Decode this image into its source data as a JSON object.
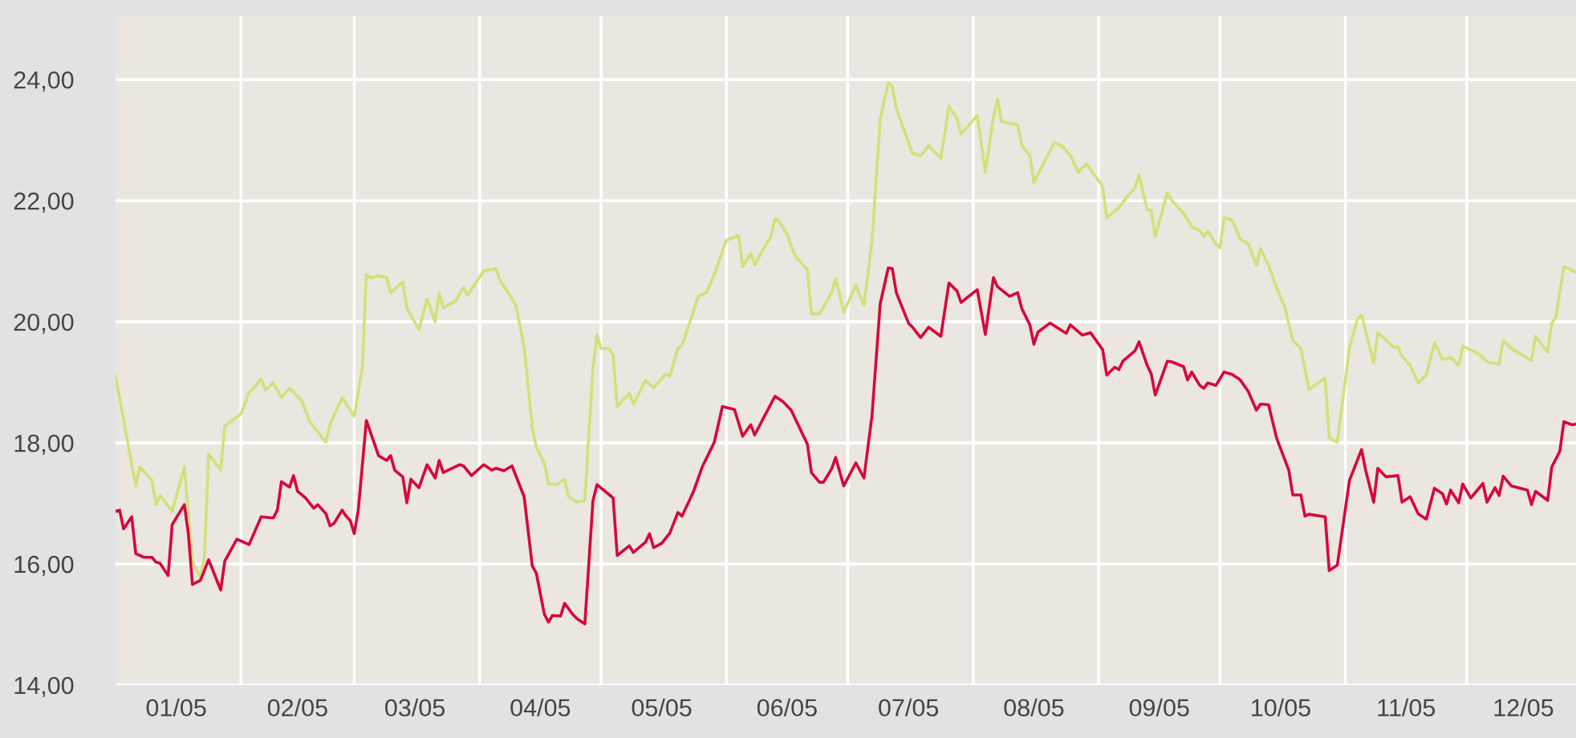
{
  "chart_data": {
    "type": "line",
    "series": [
      {
        "color": "#cfe27a",
        "x": [
          "2005-01-01",
          "2005-01-06",
          "2005-01-07",
          "2005-01-10",
          "2005-01-11",
          "2005-01-12",
          "2005-01-15",
          "2005-01-18",
          "2005-01-20",
          "2005-01-22",
          "2005-01-23",
          "2005-01-24",
          "2005-01-27",
          "2005-01-28",
          "2005-02-01",
          "2005-02-03",
          "2005-02-06",
          "2005-02-07",
          "2005-02-09",
          "2005-02-11",
          "2005-02-13",
          "2005-02-16",
          "2005-02-18",
          "2005-02-22",
          "2005-02-23",
          "2005-02-26",
          "2005-02-28",
          "2005-03-01",
          "2005-03-03",
          "2005-03-04",
          "2005-03-05",
          "2005-03-07",
          "2005-03-09",
          "2005-03-10",
          "2005-03-13",
          "2005-03-14",
          "2005-03-17",
          "2005-03-19",
          "2005-03-21",
          "2005-03-22",
          "2005-03-23",
          "2005-03-26",
          "2005-03-28",
          "2005-03-29",
          "2005-04-02",
          "2005-04-05",
          "2005-04-06",
          "2005-04-10",
          "2005-04-12",
          "2005-04-14",
          "2005-04-15",
          "2005-04-17",
          "2005-04-18",
          "2005-04-20",
          "2005-04-22",
          "2005-04-23",
          "2005-04-25",
          "2005-04-27",
          "2005-04-29",
          "2005-04-30",
          "2005-05-01",
          "2005-05-03",
          "2005-05-04",
          "2005-05-05",
          "2005-05-08",
          "2005-05-09",
          "2005-05-12",
          "2005-05-14",
          "2005-05-17",
          "2005-05-18",
          "2005-05-20",
          "2005-05-21",
          "2005-05-23",
          "2005-05-25",
          "2005-05-27",
          "2005-05-29",
          "2005-06-01",
          "2005-06-04",
          "2005-06-05",
          "2005-06-07",
          "2005-06-08",
          "2005-06-10",
          "2005-06-12",
          "2005-06-13",
          "2005-06-14",
          "2005-06-16",
          "2005-06-18",
          "2005-06-21",
          "2005-06-22",
          "2005-06-24",
          "2005-06-27",
          "2005-06-28",
          "2005-06-30",
          "2005-07-03",
          "2005-07-05",
          "2005-07-07",
          "2005-07-09",
          "2005-07-11",
          "2005-07-12",
          "2005-07-13",
          "2005-07-17",
          "2005-07-19",
          "2005-07-21",
          "2005-07-24",
          "2005-07-26",
          "2005-07-28",
          "2005-07-29",
          "2005-08-02",
          "2005-08-04",
          "2005-08-06",
          "2005-08-07",
          "2005-08-08",
          "2005-08-12",
          "2005-08-13",
          "2005-08-15",
          "2005-08-16",
          "2005-08-17",
          "2005-08-21",
          "2005-08-23",
          "2005-08-25",
          "2005-08-27",
          "2005-08-29",
          "2005-08-30",
          "2005-09-02",
          "2005-09-03",
          "2005-09-06",
          "2005-09-08",
          "2005-09-10",
          "2005-09-11",
          "2005-09-13",
          "2005-09-14",
          "2005-09-15",
          "2005-09-18",
          "2005-09-19",
          "2005-09-22",
          "2005-09-24",
          "2005-09-26",
          "2005-09-27",
          "2005-09-28",
          "2005-09-30",
          "2005-10-01",
          "2005-10-02",
          "2005-10-04",
          "2005-10-06",
          "2005-10-08",
          "2005-10-10",
          "2005-10-11",
          "2005-10-13",
          "2005-10-15",
          "2005-10-17",
          "2005-10-19",
          "2005-10-21",
          "2005-10-23",
          "2005-10-27",
          "2005-10-28",
          "2005-10-30",
          "2005-11-02",
          "2005-11-04",
          "2005-11-05",
          "2005-11-08",
          "2005-11-09",
          "2005-11-13",
          "2005-11-14",
          "2005-11-15",
          "2005-11-17",
          "2005-11-19",
          "2005-11-21",
          "2005-11-23",
          "2005-11-25",
          "2005-11-27",
          "2005-11-29",
          "2005-11-30",
          "2005-12-04",
          "2005-12-06",
          "2005-12-09",
          "2005-12-10",
          "2005-12-12",
          "2005-12-17",
          "2005-12-18",
          "2005-12-21",
          "2005-12-22",
          "2005-12-23",
          "2005-12-25",
          "2005-12-28"
        ],
        "values": [
          19.1,
          17.29,
          17.6,
          17.38,
          16.98,
          17.13,
          16.87,
          17.6,
          16.05,
          15.76,
          16.14,
          17.82,
          17.55,
          18.28,
          18.48,
          18.83,
          19.05,
          18.87,
          18.99,
          18.75,
          18.9,
          18.7,
          18.35,
          18.01,
          18.3,
          18.75,
          18.54,
          18.44,
          19.23,
          20.78,
          20.72,
          20.76,
          20.73,
          20.48,
          20.66,
          20.23,
          19.87,
          20.38,
          20.0,
          20.48,
          20.23,
          20.34,
          20.57,
          20.44,
          20.84,
          20.88,
          20.69,
          20.27,
          19.58,
          18.26,
          17.93,
          17.66,
          17.33,
          17.31,
          17.4,
          17.11,
          17.02,
          17.05,
          19.23,
          19.78,
          19.56,
          19.56,
          19.45,
          18.6,
          18.82,
          18.64,
          19.03,
          18.91,
          19.14,
          19.1,
          19.56,
          19.61,
          20.0,
          20.42,
          20.48,
          20.78,
          21.35,
          21.42,
          20.91,
          21.13,
          20.94,
          21.19,
          21.41,
          21.7,
          21.66,
          21.44,
          21.09,
          20.86,
          20.13,
          20.13,
          20.48,
          20.72,
          20.16,
          20.6,
          20.27,
          21.35,
          23.34,
          23.95,
          23.89,
          23.52,
          22.78,
          22.74,
          22.91,
          22.7,
          23.56,
          23.36,
          23.1,
          23.41,
          22.47,
          23.38,
          23.68,
          23.31,
          23.25,
          22.91,
          22.75,
          22.3,
          22.43,
          22.96,
          22.9,
          22.75,
          22.47,
          22.61,
          22.52,
          22.23,
          21.72,
          21.88,
          22.06,
          22.21,
          22.43,
          21.85,
          21.84,
          21.41,
          22.13,
          22.01,
          21.79,
          21.57,
          21.51,
          21.41,
          21.5,
          21.28,
          21.22,
          21.72,
          21.68,
          21.37,
          21.29,
          20.93,
          21.21,
          20.93,
          20.56,
          20.25,
          19.69,
          19.56,
          18.88,
          19.07,
          18.08,
          18.01,
          19.57,
          20.05,
          20.11,
          19.32,
          19.82,
          19.58,
          19.58,
          19.43,
          19.28,
          18.99,
          19.12,
          19.65,
          19.38,
          19.41,
          19.28,
          19.6,
          19.47,
          19.34,
          19.3,
          19.69,
          19.56,
          19.36,
          19.76,
          19.5,
          19.98,
          20.07,
          20.91,
          20.82
        ]
      },
      {
        "color": "#d6083b",
        "x": [
          "2005-01-01",
          "2005-01-02",
          "2005-01-03",
          "2005-01-05",
          "2005-01-06",
          "2005-01-08",
          "2005-01-10",
          "2005-01-11",
          "2005-01-12",
          "2005-01-14",
          "2005-01-15",
          "2005-01-18",
          "2005-01-19",
          "2005-01-20",
          "2005-01-22",
          "2005-01-24",
          "2005-01-27",
          "2005-01-28",
          "2005-01-31",
          "2005-02-03",
          "2005-02-06",
          "2005-02-09",
          "2005-02-10",
          "2005-02-11",
          "2005-02-13",
          "2005-02-14",
          "2005-02-15",
          "2005-02-17",
          "2005-02-19",
          "2005-02-20",
          "2005-02-22",
          "2005-02-23",
          "2005-02-24",
          "2005-02-26",
          "2005-02-27",
          "2005-02-28",
          "2005-03-01",
          "2005-03-02",
          "2005-03-04",
          "2005-03-07",
          "2005-03-09",
          "2005-03-10",
          "2005-03-11",
          "2005-03-13",
          "2005-03-14",
          "2005-03-15",
          "2005-03-17",
          "2005-03-19",
          "2005-03-21",
          "2005-03-22",
          "2005-03-23",
          "2005-03-27",
          "2005-03-28",
          "2005-03-30",
          "2005-04-02",
          "2005-04-04",
          "2005-04-05",
          "2005-04-07",
          "2005-04-09",
          "2005-04-12",
          "2005-04-14",
          "2005-04-15",
          "2005-04-17",
          "2005-04-18",
          "2005-04-19",
          "2005-04-21",
          "2005-04-22",
          "2005-04-24",
          "2005-04-25",
          "2005-04-27",
          "2005-04-29",
          "2005-04-30",
          "2005-05-04",
          "2005-05-05",
          "2005-05-08",
          "2005-05-09",
          "2005-05-12",
          "2005-05-13",
          "2005-05-14",
          "2005-05-16",
          "2005-05-18",
          "2005-05-20",
          "2005-05-21",
          "2005-05-23",
          "2005-05-24",
          "2005-05-26",
          "2005-05-29",
          "2005-05-31",
          "2005-06-03",
          "2005-06-05",
          "2005-06-07",
          "2005-06-08",
          "2005-06-10",
          "2005-06-13",
          "2005-06-15",
          "2005-06-17",
          "2005-06-21",
          "2005-06-22",
          "2005-06-24",
          "2005-06-25",
          "2005-06-27",
          "2005-06-28",
          "2005-06-30",
          "2005-07-03",
          "2005-07-05",
          "2005-07-07",
          "2005-07-09",
          "2005-07-11",
          "2005-07-12",
          "2005-07-13",
          "2005-07-16",
          "2005-07-17",
          "2005-07-19",
          "2005-07-21",
          "2005-07-24",
          "2005-07-26",
          "2005-07-28",
          "2005-07-29",
          "2005-08-02",
          "2005-08-04",
          "2005-08-06",
          "2005-08-07",
          "2005-08-10",
          "2005-08-12",
          "2005-08-13",
          "2005-08-15",
          "2005-08-16",
          "2005-08-17",
          "2005-08-20",
          "2005-08-24",
          "2005-08-25",
          "2005-08-28",
          "2005-08-30",
          "2005-09-02",
          "2005-09-03",
          "2005-09-05",
          "2005-09-06",
          "2005-09-07",
          "2005-09-10",
          "2005-09-11",
          "2005-09-13",
          "2005-09-14",
          "2005-09-15",
          "2005-09-18",
          "2005-09-19",
          "2005-09-22",
          "2005-09-23",
          "2005-09-24",
          "2005-09-26",
          "2005-09-27",
          "2005-09-28",
          "2005-09-30",
          "2005-10-02",
          "2005-10-04",
          "2005-10-06",
          "2005-10-08",
          "2005-10-10",
          "2005-10-11",
          "2005-10-13",
          "2005-10-15",
          "2005-10-18",
          "2005-10-19",
          "2005-10-21",
          "2005-10-22",
          "2005-10-23",
          "2005-10-27",
          "2005-10-28",
          "2005-10-30",
          "2005-11-02",
          "2005-11-05",
          "2005-11-06",
          "2005-11-08",
          "2005-11-09",
          "2005-11-11",
          "2005-11-14",
          "2005-11-15",
          "2005-11-17",
          "2005-11-19",
          "2005-11-21",
          "2005-11-23",
          "2005-11-25",
          "2005-11-26",
          "2005-11-27",
          "2005-11-29",
          "2005-11-30",
          "2005-12-02",
          "2005-12-05",
          "2005-12-06",
          "2005-12-08",
          "2005-12-09",
          "2005-12-10",
          "2005-12-12",
          "2005-12-16",
          "2005-12-17",
          "2005-12-18",
          "2005-12-21",
          "2005-12-22",
          "2005-12-24",
          "2005-12-25",
          "2005-12-27",
          "2005-12-28"
        ],
        "values": [
          16.87,
          16.89,
          16.58,
          16.78,
          16.17,
          16.11,
          16.11,
          16.03,
          16.01,
          15.81,
          16.65,
          16.98,
          16.5,
          15.66,
          15.73,
          16.07,
          15.57,
          16.05,
          16.41,
          16.32,
          16.78,
          16.76,
          16.89,
          17.36,
          17.27,
          17.46,
          17.2,
          17.09,
          16.92,
          16.98,
          16.83,
          16.63,
          16.67,
          16.89,
          16.79,
          16.72,
          16.5,
          16.89,
          18.37,
          17.79,
          17.71,
          17.79,
          17.55,
          17.44,
          17.01,
          17.4,
          17.26,
          17.64,
          17.42,
          17.71,
          17.51,
          17.64,
          17.62,
          17.46,
          17.64,
          17.55,
          17.58,
          17.54,
          17.62,
          17.11,
          15.97,
          15.85,
          15.17,
          15.04,
          15.15,
          15.14,
          15.35,
          15.17,
          15.1,
          15.01,
          17.04,
          17.31,
          17.09,
          16.14,
          16.3,
          16.19,
          16.36,
          16.5,
          16.27,
          16.34,
          16.51,
          16.85,
          16.79,
          17.07,
          17.22,
          17.6,
          18.01,
          18.6,
          18.55,
          18.11,
          18.3,
          18.13,
          18.39,
          18.77,
          18.68,
          18.54,
          17.98,
          17.51,
          17.35,
          17.35,
          17.57,
          17.76,
          17.29,
          17.67,
          17.42,
          18.46,
          20.29,
          20.89,
          20.88,
          20.48,
          19.98,
          19.91,
          19.74,
          19.91,
          19.76,
          20.64,
          20.51,
          20.32,
          20.53,
          19.79,
          20.73,
          20.58,
          20.42,
          20.48,
          20.22,
          19.95,
          19.63,
          19.83,
          19.98,
          19.81,
          19.95,
          19.78,
          19.82,
          19.54,
          19.12,
          19.25,
          19.21,
          19.35,
          19.52,
          19.67,
          19.28,
          19.14,
          18.79,
          19.35,
          19.34,
          19.26,
          19.04,
          19.17,
          18.95,
          18.9,
          18.99,
          18.95,
          19.17,
          19.13,
          19.04,
          18.85,
          18.54,
          18.64,
          18.63,
          18.08,
          17.55,
          17.14,
          17.14,
          16.79,
          16.82,
          16.78,
          15.89,
          15.98,
          17.38,
          17.89,
          17.55,
          17.02,
          17.58,
          17.44,
          17.46,
          17.02,
          17.11,
          16.83,
          16.74,
          17.25,
          17.16,
          16.99,
          17.22,
          17.01,
          17.32,
          17.09,
          17.33,
          17.02,
          17.26,
          17.13,
          17.45,
          17.29,
          17.22,
          16.98,
          17.2,
          17.05,
          17.6,
          17.86,
          18.35,
          18.3,
          18.31
        ]
      }
    ],
    "xlim": [
      "2005-01-01",
      "2005-12-28"
    ],
    "xticks": [
      {
        "value": "2005-01-16",
        "label": "01/05"
      },
      {
        "value": "2005-02-01",
        "label": null
      },
      {
        "value": "2005-02-15",
        "label": "02/05"
      },
      {
        "value": "2005-03-01",
        "label": null
      },
      {
        "value": "2005-03-16",
        "label": "03/05"
      },
      {
        "value": "2005-04-01",
        "label": null
      },
      {
        "value": "2005-04-16",
        "label": "04/05"
      },
      {
        "value": "2005-05-01",
        "label": null
      },
      {
        "value": "2005-05-16",
        "label": "05/05"
      },
      {
        "value": "2005-06-01",
        "label": null
      },
      {
        "value": "2005-06-16",
        "label": "06/05"
      },
      {
        "value": "2005-07-01",
        "label": null
      },
      {
        "value": "2005-07-16",
        "label": "07/05"
      },
      {
        "value": "2005-08-01",
        "label": null
      },
      {
        "value": "2005-08-16",
        "label": "08/05"
      },
      {
        "value": "2005-09-01",
        "label": null
      },
      {
        "value": "2005-09-16",
        "label": "09/05"
      },
      {
        "value": "2005-10-01",
        "label": null
      },
      {
        "value": "2005-10-16",
        "label": "10/05"
      },
      {
        "value": "2005-11-01",
        "label": null
      },
      {
        "value": "2005-11-16",
        "label": "11/05"
      },
      {
        "value": "2005-12-01",
        "label": null
      },
      {
        "value": "2005-12-15",
        "label": "12/05"
      }
    ],
    "ylim": [
      14,
      25.05
    ],
    "yticks": [
      {
        "value": 14,
        "label": "14,00"
      },
      {
        "value": 16,
        "label": "16,00"
      },
      {
        "value": 18,
        "label": "18,00"
      },
      {
        "value": 20,
        "label": "20,00"
      },
      {
        "value": 22,
        "label": "22,00"
      },
      {
        "value": 24,
        "label": "24,00"
      }
    ],
    "grid": true,
    "line_style": "solid"
  }
}
